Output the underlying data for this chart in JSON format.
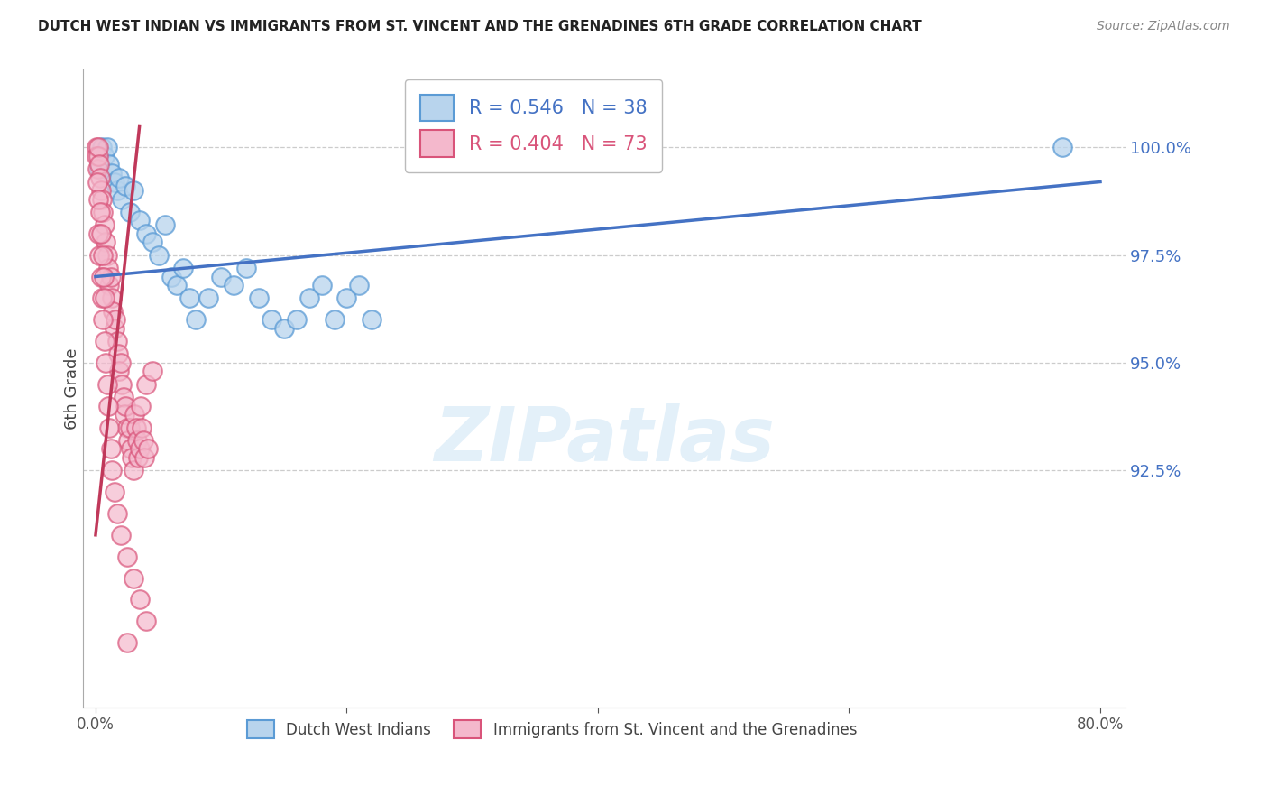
{
  "title": "DUTCH WEST INDIAN VS IMMIGRANTS FROM ST. VINCENT AND THE GRENADINES 6TH GRADE CORRELATION CHART",
  "source": "Source: ZipAtlas.com",
  "ylabel": "6th Grade",
  "x_min": 0.0,
  "x_max": 80.0,
  "y_min": 87.0,
  "y_max": 101.8,
  "y_ticks": [
    92.5,
    95.0,
    97.5,
    100.0
  ],
  "y_tick_labels": [
    "92.5%",
    "95.0%",
    "97.5%",
    "100.0%"
  ],
  "x_ticks": [
    0.0,
    20.0,
    40.0,
    60.0,
    80.0
  ],
  "x_tick_labels": [
    "0.0%",
    "",
    "",
    "",
    "80.0%"
  ],
  "blue_fill_color": "#b8d4ed",
  "blue_edge_color": "#5b9bd5",
  "pink_fill_color": "#f4b8cc",
  "pink_edge_color": "#d9547a",
  "blue_line_color": "#4472c4",
  "pink_line_color": "#c0385a",
  "legend_blue_label": "R = 0.546   N = 38",
  "legend_pink_label": "R = 0.404   N = 73",
  "legend_label_blue": "Dutch West Indians",
  "legend_label_pink": "Immigrants from St. Vincent and the Grenadines",
  "watermark_text": "ZIPatlas",
  "blue_scatter_x": [
    0.3,
    0.5,
    0.7,
    0.9,
    1.1,
    1.3,
    1.5,
    1.7,
    1.9,
    2.1,
    2.4,
    2.7,
    3.0,
    3.5,
    4.0,
    4.5,
    5.0,
    5.5,
    6.0,
    6.5,
    7.0,
    7.5,
    8.0,
    9.0,
    10.0,
    11.0,
    12.0,
    13.0,
    14.0,
    15.0,
    16.0,
    17.0,
    18.0,
    19.0,
    20.0,
    21.0,
    22.0,
    77.0
  ],
  "blue_scatter_y": [
    99.5,
    100.0,
    99.8,
    100.0,
    99.6,
    99.4,
    99.2,
    99.0,
    99.3,
    98.8,
    99.1,
    98.5,
    99.0,
    98.3,
    98.0,
    97.8,
    97.5,
    98.2,
    97.0,
    96.8,
    97.2,
    96.5,
    96.0,
    96.5,
    97.0,
    96.8,
    97.2,
    96.5,
    96.0,
    95.8,
    96.0,
    96.5,
    96.8,
    96.0,
    96.5,
    96.8,
    96.0,
    100.0
  ],
  "pink_scatter_x": [
    0.05,
    0.1,
    0.15,
    0.2,
    0.25,
    0.3,
    0.35,
    0.4,
    0.5,
    0.6,
    0.7,
    0.8,
    0.9,
    1.0,
    1.1,
    1.2,
    1.3,
    1.4,
    1.5,
    1.6,
    1.7,
    1.8,
    1.9,
    2.0,
    2.1,
    2.2,
    2.3,
    2.4,
    2.5,
    2.6,
    2.7,
    2.8,
    2.9,
    3.0,
    3.1,
    3.2,
    3.3,
    3.4,
    3.5,
    3.6,
    3.7,
    3.8,
    3.9,
    4.0,
    4.2,
    4.5,
    0.2,
    0.3,
    0.4,
    0.5,
    0.6,
    0.7,
    0.8,
    0.9,
    1.0,
    1.1,
    1.2,
    1.3,
    1.5,
    1.7,
    2.0,
    2.5,
    3.0,
    3.5,
    4.0,
    0.15,
    0.25,
    0.35,
    0.45,
    0.55,
    0.65,
    0.75,
    2.5
  ],
  "pink_scatter_y": [
    100.0,
    99.8,
    99.5,
    99.8,
    100.0,
    99.6,
    99.3,
    99.0,
    98.8,
    98.5,
    98.2,
    97.8,
    97.5,
    97.2,
    96.8,
    97.0,
    96.5,
    96.2,
    95.8,
    96.0,
    95.5,
    95.2,
    94.8,
    95.0,
    94.5,
    94.2,
    93.8,
    94.0,
    93.5,
    93.2,
    93.5,
    93.0,
    92.8,
    92.5,
    93.8,
    93.5,
    93.2,
    92.8,
    93.0,
    94.0,
    93.5,
    93.2,
    92.8,
    94.5,
    93.0,
    94.8,
    98.0,
    97.5,
    97.0,
    96.5,
    96.0,
    95.5,
    95.0,
    94.5,
    94.0,
    93.5,
    93.0,
    92.5,
    92.0,
    91.5,
    91.0,
    90.5,
    90.0,
    89.5,
    89.0,
    99.2,
    98.8,
    98.5,
    98.0,
    97.5,
    97.0,
    96.5,
    88.5
  ]
}
